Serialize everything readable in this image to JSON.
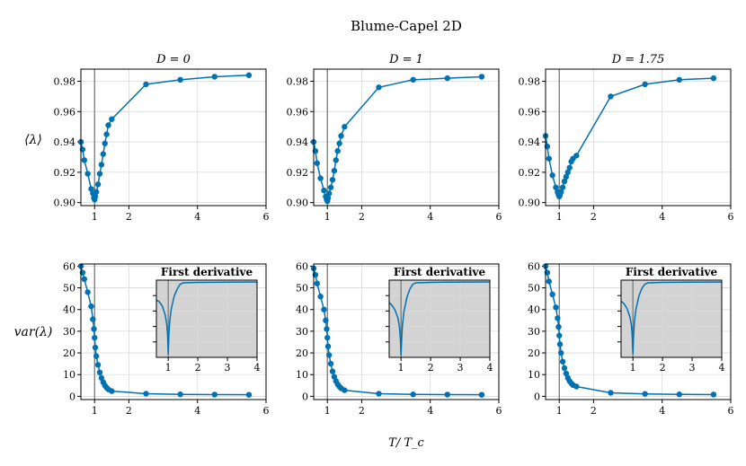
{
  "figure": {
    "title": "Blume-Capel 2D",
    "xlabel": "T/ T_c",
    "row_ylabels": [
      "⟨λ⟩",
      "var(λ)"
    ]
  },
  "chart_data": [
    {
      "type": "line",
      "panel": "D0-mean",
      "title": "D = 0",
      "xlabel": "",
      "ylabel": "⟨λ⟩",
      "xlim": [
        0.6,
        6
      ],
      "ylim": [
        0.898,
        0.988
      ],
      "xticks": [
        1,
        2,
        4,
        6
      ],
      "xticklabels": [
        "1",
        "2",
        "4",
        "6"
      ],
      "yticks": [
        0.9,
        0.92,
        0.94,
        0.96,
        0.98
      ],
      "yticklabels": [
        "0.90",
        "0.92",
        "0.94",
        "0.96",
        "0.98"
      ],
      "grid": true,
      "vline_x": 1,
      "series": [
        {
          "x": [
            0.6,
            0.65,
            0.7,
            0.8,
            0.9,
            0.95,
            0.98,
            1.0,
            1.02,
            1.05,
            1.1,
            1.15,
            1.2,
            1.25,
            1.3,
            1.35,
            1.4,
            1.5,
            2.5,
            3.5,
            4.5,
            5.5
          ],
          "y": [
            0.94,
            0.935,
            0.928,
            0.919,
            0.909,
            0.906,
            0.903,
            0.902,
            0.904,
            0.907,
            0.912,
            0.919,
            0.925,
            0.932,
            0.939,
            0.945,
            0.951,
            0.955,
            0.978,
            0.981,
            0.983,
            0.984
          ]
        }
      ]
    },
    {
      "type": "line",
      "panel": "D1-mean",
      "title": "D = 1",
      "xlabel": "",
      "ylabel": "",
      "xlim": [
        0.6,
        6
      ],
      "ylim": [
        0.898,
        0.988
      ],
      "xticks": [
        1,
        2,
        4,
        6
      ],
      "xticklabels": [
        "1",
        "2",
        "4",
        "6"
      ],
      "yticks": [
        0.9,
        0.92,
        0.94,
        0.96,
        0.98
      ],
      "yticklabels": [
        "0.90",
        "0.92",
        "0.94",
        "0.96",
        "0.98"
      ],
      "grid": true,
      "vline_x": 1,
      "series": [
        {
          "x": [
            0.6,
            0.65,
            0.7,
            0.8,
            0.9,
            0.95,
            0.98,
            1.0,
            1.02,
            1.05,
            1.1,
            1.15,
            1.2,
            1.25,
            1.3,
            1.35,
            1.4,
            1.5,
            2.5,
            3.5,
            4.5,
            5.5
          ],
          "y": [
            0.94,
            0.934,
            0.926,
            0.916,
            0.908,
            0.904,
            0.902,
            0.901,
            0.903,
            0.906,
            0.91,
            0.915,
            0.921,
            0.928,
            0.934,
            0.939,
            0.944,
            0.95,
            0.976,
            0.981,
            0.982,
            0.983
          ]
        }
      ]
    },
    {
      "type": "line",
      "panel": "D175-mean",
      "title": "D = 1.75",
      "xlabel": "",
      "ylabel": "",
      "xlim": [
        0.6,
        6
      ],
      "ylim": [
        0.898,
        0.988
      ],
      "xticks": [
        1,
        2,
        4,
        6
      ],
      "xticklabels": [
        "1",
        "2",
        "4",
        "6"
      ],
      "yticks": [
        0.9,
        0.92,
        0.94,
        0.96,
        0.98
      ],
      "yticklabels": [
        "0.90",
        "0.92",
        "0.94",
        "0.96",
        "0.98"
      ],
      "grid": true,
      "vline_x": 1,
      "series": [
        {
          "x": [
            0.6,
            0.65,
            0.7,
            0.8,
            0.9,
            0.95,
            0.98,
            1.0,
            1.02,
            1.05,
            1.1,
            1.15,
            1.2,
            1.25,
            1.3,
            1.35,
            1.4,
            1.5,
            2.5,
            3.5,
            4.5,
            5.5
          ],
          "y": [
            0.944,
            0.937,
            0.929,
            0.918,
            0.91,
            0.907,
            0.905,
            0.904,
            0.905,
            0.907,
            0.91,
            0.914,
            0.917,
            0.92,
            0.923,
            0.927,
            0.929,
            0.931,
            0.97,
            0.978,
            0.981,
            0.982
          ]
        }
      ]
    },
    {
      "type": "line",
      "panel": "D0-var",
      "title": "",
      "xlabel": "",
      "ylabel": "var(λ)",
      "xlim": [
        0.6,
        6
      ],
      "ylim": [
        -1.5,
        61
      ],
      "xticks": [
        1,
        2,
        4,
        6
      ],
      "xticklabels": [
        "1",
        "2",
        "4",
        "6"
      ],
      "yticks": [
        0,
        10,
        20,
        30,
        40,
        50,
        60
      ],
      "yticklabels": [
        "0",
        "10",
        "20",
        "30",
        "40",
        "50",
        "60"
      ],
      "grid": true,
      "vline_x": 1,
      "series": [
        {
          "x": [
            0.6,
            0.65,
            0.7,
            0.8,
            0.9,
            0.95,
            0.98,
            1.0,
            1.02,
            1.05,
            1.1,
            1.15,
            1.2,
            1.25,
            1.3,
            1.35,
            1.4,
            1.5,
            2.5,
            3.5,
            4.5,
            5.5
          ],
          "y": [
            60,
            57,
            54,
            48,
            41.5,
            35.5,
            31,
            27,
            22.5,
            18.5,
            14.5,
            11,
            8.5,
            6.5,
            5,
            4,
            3.2,
            2.4,
            1.2,
            0.9,
            0.8,
            0.7
          ]
        }
      ],
      "inset": {
        "title": "First derivative",
        "xlim": [
          0.6,
          4
        ],
        "xticks": [
          1,
          2,
          3,
          4
        ],
        "xticklabels": [
          "1",
          "2",
          "3",
          "4"
        ],
        "vline_x": 1,
        "series": [
          {
            "x": [
              0.6,
              0.7,
              0.8,
              0.9,
              0.95,
              0.98,
              1.0,
              1.02,
              1.05,
              1.1,
              1.2,
              1.3,
              1.4,
              1.5,
              2.0,
              2.5,
              3.0,
              3.5,
              4.0
            ],
            "y": [
              -30,
              -33,
              -40,
              -55,
              -70,
              -90,
              -120,
              -90,
              -65,
              -45,
              -24,
              -12,
              -4,
              -1.5,
              -0.8,
              -0.5,
              -0.3,
              -0.2,
              -0.1
            ]
          }
        ],
        "ylim": [
          -125,
          3
        ]
      }
    },
    {
      "type": "line",
      "panel": "D1-var",
      "title": "",
      "xlabel": "",
      "ylabel": "",
      "xlim": [
        0.6,
        6
      ],
      "ylim": [
        -1.5,
        61
      ],
      "xticks": [
        1,
        2,
        4,
        6
      ],
      "xticklabels": [
        "1",
        "2",
        "4",
        "6"
      ],
      "yticks": [
        0,
        10,
        20,
        30,
        40,
        50,
        60
      ],
      "yticklabels": [
        "0",
        "10",
        "20",
        "30",
        "40",
        "50",
        "60"
      ],
      "grid": true,
      "vline_x": 1,
      "series": [
        {
          "x": [
            0.6,
            0.65,
            0.7,
            0.8,
            0.9,
            0.95,
            0.98,
            1.0,
            1.02,
            1.05,
            1.1,
            1.15,
            1.2,
            1.25,
            1.3,
            1.35,
            1.4,
            1.5,
            2.5,
            3.5,
            4.5,
            5.5
          ],
          "y": [
            59,
            56,
            52,
            46,
            40,
            35,
            31,
            27,
            23,
            19,
            15,
            11.5,
            9,
            7,
            5.5,
            4.5,
            3.7,
            2.8,
            1.2,
            0.9,
            0.8,
            0.7
          ]
        }
      ],
      "inset": {
        "title": "First derivative",
        "xlim": [
          0.6,
          4
        ],
        "xticks": [
          1,
          2,
          3,
          4
        ],
        "xticklabels": [
          "1",
          "2",
          "3",
          "4"
        ],
        "vline_x": 1,
        "series": [
          {
            "x": [
              0.6,
              0.7,
              0.8,
              0.9,
              0.95,
              0.98,
              1.0,
              1.02,
              1.05,
              1.1,
              1.2,
              1.3,
              1.4,
              1.5,
              2.0,
              2.5,
              3.0,
              3.5,
              4.0
            ],
            "y": [
              -35,
              -40,
              -48,
              -62,
              -78,
              -98,
              -125,
              -100,
              -72,
              -50,
              -26,
              -12,
              -4,
              -1.5,
              -0.8,
              -0.5,
              -0.3,
              -0.2,
              -0.1
            ]
          }
        ],
        "ylim": [
          -128,
          3
        ]
      }
    },
    {
      "type": "line",
      "panel": "D175-var",
      "title": "",
      "xlabel": "",
      "ylabel": "",
      "xlim": [
        0.6,
        6
      ],
      "ylim": [
        -1.5,
        61
      ],
      "xticks": [
        1,
        2,
        4,
        6
      ],
      "xticklabels": [
        "1",
        "2",
        "4",
        "6"
      ],
      "yticks": [
        0,
        10,
        20,
        30,
        40,
        50,
        60
      ],
      "yticklabels": [
        "0",
        "10",
        "20",
        "30",
        "40",
        "50",
        "60"
      ],
      "grid": true,
      "vline_x": 1,
      "series": [
        {
          "x": [
            0.6,
            0.65,
            0.7,
            0.8,
            0.9,
            0.95,
            0.98,
            1.0,
            1.02,
            1.05,
            1.1,
            1.15,
            1.2,
            1.25,
            1.3,
            1.35,
            1.4,
            1.5,
            2.5,
            3.5,
            4.5,
            5.5
          ],
          "y": [
            60,
            57,
            53,
            47,
            41,
            36,
            32,
            28,
            24,
            20,
            16,
            13,
            10.5,
            8.5,
            7,
            6,
            5.2,
            4.5,
            1.6,
            1.1,
            0.9,
            0.8
          ]
        }
      ],
      "inset": {
        "title": "First derivative",
        "xlim": [
          0.6,
          4
        ],
        "xticks": [
          1,
          2,
          3,
          4
        ],
        "xticklabels": [
          "1",
          "2",
          "3",
          "4"
        ],
        "vline_x": 1,
        "series": [
          {
            "x": [
              0.6,
              0.7,
              0.8,
              0.9,
              0.95,
              0.98,
              1.0,
              1.02,
              1.05,
              1.1,
              1.2,
              1.3,
              1.4,
              1.5,
              2.0,
              2.5,
              3.0,
              3.5,
              4.0
            ],
            "y": [
              -32,
              -36,
              -44,
              -58,
              -72,
              -92,
              -120,
              -92,
              -66,
              -46,
              -24,
              -11,
              -4,
              -1.5,
              -0.8,
              -0.5,
              -0.3,
              -0.2,
              -0.1
            ]
          }
        ],
        "ylim": [
          -125,
          3
        ]
      }
    }
  ]
}
